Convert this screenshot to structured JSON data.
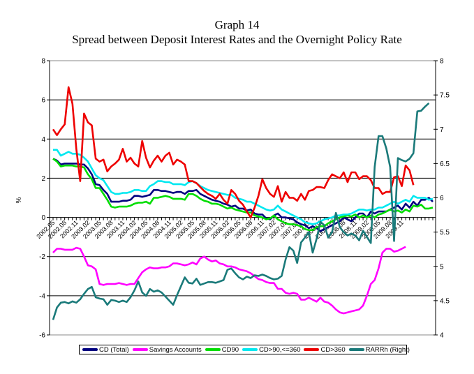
{
  "chart_data": {
    "type": "line",
    "title": "Graph 14",
    "subtitle": "Spread between Deposit Interest Rates and the Overnight Policy Rate",
    "ylabel": "%",
    "ylabel_right": "",
    "xlabel": "",
    "ylim": [
      -6,
      8
    ],
    "ylim_right": [
      4,
      8
    ],
    "yticks": [
      "-6",
      "-4",
      "-2",
      "0",
      "2",
      "4",
      "6",
      "8"
    ],
    "yticks_right": [
      "4",
      "4.5",
      "5",
      "5.5",
      "6",
      "6.5",
      "7",
      "7.5",
      "8"
    ],
    "yticks_values": [
      -6,
      -4,
      -2,
      0,
      2,
      4,
      6,
      8
    ],
    "yticks_right_values": [
      4,
      4.5,
      5,
      5.5,
      6,
      6.5,
      7,
      7.5,
      8
    ],
    "grid": "horizontal at -4, -2, 2, 4, 6",
    "legend_position": "bottom",
    "x_tick_labels": [
      "2002.05",
      "2002.08",
      "2002.11",
      "2003.02",
      "2003.05",
      "2003.08",
      "2003.11",
      "2004.02",
      "2004.05",
      "2004.08",
      "2004.11",
      "2005.02",
      "2005.05",
      "2005.08",
      "2005.11",
      "2006.02",
      "2006.05",
      "2006.08",
      "2006.11",
      "2007.02",
      "2007.05",
      "2007.08",
      "2007.11",
      "2008.02",
      "2008.05",
      "2008.08",
      "2008.11",
      "2009.02",
      "2009.05",
      "2009.08",
      "2009.11"
    ],
    "x_start": "2002.05",
    "x_end": "2009.12",
    "x_frequency": "monthly",
    "series": [
      {
        "name": "CD (Total)",
        "axis": "left",
        "color": "#000080",
        "values": [
          3.0,
          2.9,
          2.7,
          2.75,
          2.75,
          2.75,
          2.75,
          2.7,
          2.7,
          2.5,
          2.2,
          1.7,
          1.65,
          1.4,
          1.2,
          0.8,
          0.8,
          0.8,
          0.85,
          0.85,
          0.9,
          1.1,
          1.1,
          1.05,
          1.1,
          1.15,
          1.4,
          1.4,
          1.35,
          1.35,
          1.3,
          1.25,
          1.3,
          1.3,
          1.2,
          1.35,
          1.35,
          1.4,
          1.2,
          1.1,
          1.0,
          0.9,
          0.85,
          0.8,
          0.7,
          0.65,
          0.55,
          0.6,
          0.45,
          0.45,
          0.35,
          0.4,
          0.2,
          0.15,
          0.15,
          -0.05,
          -0.1,
          0.1,
          0.2,
          0.0,
          0.0,
          -0.05,
          -0.1,
          -0.25,
          -0.35,
          -0.4,
          -0.55,
          -0.45,
          -0.55,
          -0.7,
          -0.6,
          -0.5,
          -0.4,
          -0.3,
          -0.2,
          0.0,
          -0.1,
          -0.2,
          0.0,
          0.2,
          0.2,
          0.0,
          0.3,
          0.2,
          0.3,
          0.3,
          0.3,
          0.4,
          0.5,
          0.6,
          0.4,
          0.7,
          0.5,
          0.8,
          0.6,
          0.9,
          0.9,
          1.0,
          0.8
        ]
      },
      {
        "name": "Savings Accounts",
        "axis": "left",
        "color": "#ff00ff",
        "values": [
          -1.8,
          -1.6,
          -1.6,
          -1.65,
          -1.65,
          -1.65,
          -1.55,
          -1.6,
          -2.0,
          -2.45,
          -2.5,
          -2.65,
          -3.4,
          -3.45,
          -3.4,
          -3.4,
          -3.4,
          -3.35,
          -3.4,
          -3.45,
          -3.4,
          -3.4,
          -3.1,
          -2.8,
          -2.65,
          -2.55,
          -2.6,
          -2.6,
          -2.55,
          -2.55,
          -2.5,
          -2.35,
          -2.35,
          -2.4,
          -2.45,
          -2.4,
          -2.3,
          -2.4,
          -2.1,
          -2.0,
          -2.15,
          -2.25,
          -2.2,
          -2.35,
          -2.4,
          -2.5,
          -2.5,
          -2.55,
          -2.65,
          -2.7,
          -2.75,
          -2.85,
          -3.0,
          -3.15,
          -3.2,
          -3.3,
          -3.35,
          -3.35,
          -3.65,
          -3.65,
          -3.85,
          -3.9,
          -3.85,
          -3.9,
          -4.2,
          -4.2,
          -4.1,
          -4.2,
          -4.3,
          -4.1,
          -4.3,
          -4.35,
          -4.5,
          -4.7,
          -4.85,
          -4.9,
          -4.85,
          -4.8,
          -4.75,
          -4.7,
          -4.5,
          -4.0,
          -3.4,
          -3.2,
          -2.6,
          -1.8,
          -1.6,
          -1.6,
          -1.75,
          -1.7,
          -1.6,
          -1.5
        ]
      },
      {
        "name": "CD90",
        "axis": "left",
        "color": "#00dd00",
        "values": [
          3.0,
          2.85,
          2.6,
          2.65,
          2.65,
          2.65,
          2.6,
          2.6,
          2.55,
          2.2,
          1.95,
          1.5,
          1.5,
          1.2,
          0.9,
          0.55,
          0.5,
          0.55,
          0.55,
          0.55,
          0.6,
          0.7,
          0.75,
          0.75,
          0.8,
          0.7,
          1.0,
          1.0,
          1.05,
          1.1,
          1.05,
          0.95,
          0.95,
          0.95,
          0.9,
          1.2,
          1.2,
          1.1,
          0.95,
          0.85,
          0.8,
          0.7,
          0.7,
          0.65,
          0.55,
          0.45,
          0.5,
          0.4,
          0.35,
          0.3,
          0.25,
          0.25,
          0.1,
          0.05,
          0.0,
          -0.1,
          -0.05,
          0.1,
          -0.1,
          -0.2,
          -0.3,
          -0.35,
          -0.35,
          -0.4,
          -0.45,
          -0.6,
          -0.65,
          -0.65,
          -0.5,
          -0.45,
          -0.45,
          -0.3,
          -0.2,
          -0.1,
          0.0,
          0.05,
          0.1,
          0.05,
          0.15,
          0.0,
          0.1,
          0.0,
          0.1,
          0.0,
          0.15,
          0.2,
          0.3,
          0.4,
          0.3,
          0.35,
          0.25,
          0.4,
          0.3,
          0.6,
          0.55,
          0.65,
          0.45,
          0.45,
          0.5
        ]
      },
      {
        "name": "CD>90,<=360",
        "axis": "left",
        "color": "#00e8f0",
        "values": [
          3.45,
          3.45,
          3.15,
          3.25,
          3.35,
          3.25,
          3.25,
          3.2,
          3.05,
          2.85,
          2.5,
          2.15,
          2.0,
          1.9,
          1.6,
          1.3,
          1.2,
          1.2,
          1.25,
          1.25,
          1.3,
          1.4,
          1.4,
          1.35,
          1.35,
          1.6,
          1.7,
          1.85,
          1.85,
          1.8,
          1.8,
          1.7,
          1.7,
          1.7,
          1.65,
          1.8,
          1.85,
          1.75,
          1.6,
          1.5,
          1.4,
          1.35,
          1.3,
          1.25,
          1.2,
          1.15,
          1.15,
          1.0,
          0.95,
          0.9,
          0.8,
          0.8,
          0.7,
          0.6,
          0.5,
          0.4,
          0.35,
          0.4,
          0.6,
          0.4,
          0.3,
          0.2,
          0.1,
          0.0,
          -0.1,
          -0.25,
          -0.3,
          -0.35,
          -0.3,
          -0.2,
          -0.1,
          -0.05,
          0.0,
          0.1,
          0.1,
          0.15,
          0.15,
          0.2,
          0.3,
          0.4,
          0.4,
          0.35,
          0.4,
          0.4,
          0.5,
          0.5,
          0.6,
          0.7,
          0.8,
          0.7,
          0.8,
          0.9,
          0.8,
          1.1,
          1.0,
          1.0,
          1.0,
          0.9,
          0.95
        ]
      },
      {
        "name": "CD>360",
        "axis": "left",
        "color": "#ee0000",
        "values": [
          4.5,
          4.2,
          4.5,
          4.75,
          6.65,
          5.8,
          3.5,
          1.85,
          5.3,
          4.85,
          4.7,
          3.0,
          2.85,
          2.95,
          2.35,
          2.6,
          2.75,
          2.95,
          3.5,
          2.85,
          3.05,
          2.75,
          2.6,
          3.9,
          3.05,
          2.55,
          2.9,
          3.15,
          2.85,
          3.15,
          3.3,
          2.7,
          2.95,
          2.85,
          2.7,
          1.85,
          1.85,
          1.75,
          1.55,
          1.35,
          1.2,
          1.1,
          0.95,
          1.2,
          0.9,
          0.7,
          1.4,
          1.2,
          0.85,
          0.65,
          0.3,
          0.0,
          0.5,
          1.1,
          1.95,
          1.5,
          1.2,
          1.05,
          1.6,
          0.8,
          1.3,
          1.0,
          1.0,
          0.85,
          1.2,
          0.9,
          1.35,
          1.4,
          1.55,
          1.55,
          1.5,
          1.9,
          2.2,
          2.1,
          2.0,
          2.3,
          1.8,
          2.3,
          2.3,
          1.95,
          2.1,
          2.1,
          1.9,
          1.5,
          1.5,
          1.2,
          1.3,
          1.3,
          2.05,
          2.1,
          1.6,
          2.65,
          2.4,
          1.65
        ]
      },
      {
        "name": "RARRh (Right)",
        "axis": "right",
        "color": "#1a7a7a",
        "values": [
          4.22,
          4.4,
          4.47,
          4.48,
          4.46,
          4.49,
          4.47,
          4.52,
          4.6,
          4.67,
          4.7,
          4.55,
          4.53,
          4.52,
          4.44,
          4.51,
          4.5,
          4.48,
          4.5,
          4.48,
          4.55,
          4.65,
          4.78,
          4.62,
          4.57,
          4.67,
          4.63,
          4.65,
          4.62,
          4.56,
          4.5,
          4.44,
          4.58,
          4.71,
          4.84,
          4.76,
          4.75,
          4.82,
          4.73,
          4.75,
          4.77,
          4.77,
          4.76,
          4.78,
          4.8,
          4.95,
          4.97,
          4.9,
          4.84,
          4.81,
          4.85,
          4.83,
          4.87,
          4.86,
          4.88,
          4.86,
          4.83,
          4.81,
          4.82,
          4.86,
          5.1,
          5.28,
          5.23,
          5.05,
          5.35,
          5.42,
          5.5,
          5.2,
          5.4,
          5.65,
          5.6,
          5.42,
          5.5,
          5.78,
          5.57,
          5.5,
          5.45,
          5.48,
          5.45,
          5.38,
          5.52,
          5.43,
          5.34,
          6.45,
          6.9,
          6.9,
          6.72,
          6.45,
          5.37,
          6.58,
          6.55,
          6.53,
          6.57,
          6.65,
          7.26,
          7.27,
          7.33,
          7.38
        ]
      }
    ]
  },
  "legend": {
    "items": [
      {
        "label": "CD (Total)",
        "color": "#000080"
      },
      {
        "label": "Savings Accounts",
        "color": "#ff00ff"
      },
      {
        "label": "CD90",
        "color": "#00dd00"
      },
      {
        "label": "CD>90,<=360",
        "color": "#00e8f0"
      },
      {
        "label": "CD>360",
        "color": "#ee0000"
      },
      {
        "label": "RARRh (Right)",
        "color": "#1a7a7a"
      }
    ]
  }
}
